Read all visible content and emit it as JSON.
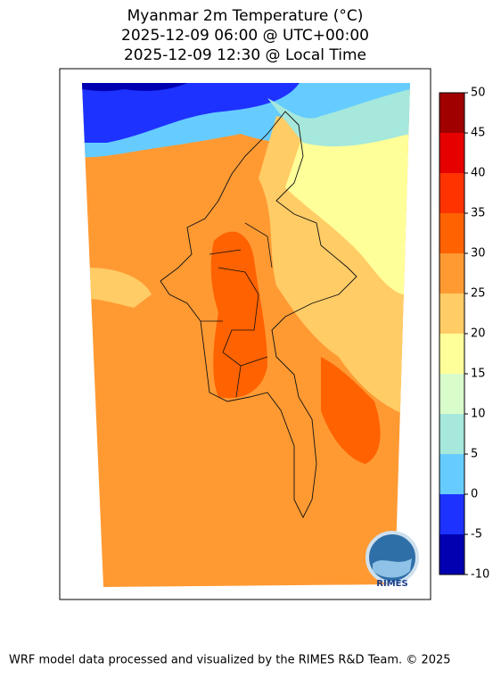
{
  "title": [
    "Myanmar 2m Temperature (°C)",
    "2025-12-09 06:00 @ UTC+00:00",
    "2025-12-09 12:30 @ Local Time"
  ],
  "colorbar": {
    "ticks": [
      -10,
      -5,
      0,
      5,
      10,
      15,
      20,
      25,
      30,
      35,
      40,
      45,
      50
    ],
    "colors": [
      "#0000b0",
      "#1e32ff",
      "#66ccff",
      "#a6e8dc",
      "#d9fccb",
      "#ffff99",
      "#ffcc66",
      "#ff9a33",
      "#ff6200",
      "#ff3300",
      "#e60000",
      "#a00000"
    ]
  },
  "logo": "RIMES",
  "footer": "WRF model data processed and visualized by the RIMES R&D Team. © 2025"
}
